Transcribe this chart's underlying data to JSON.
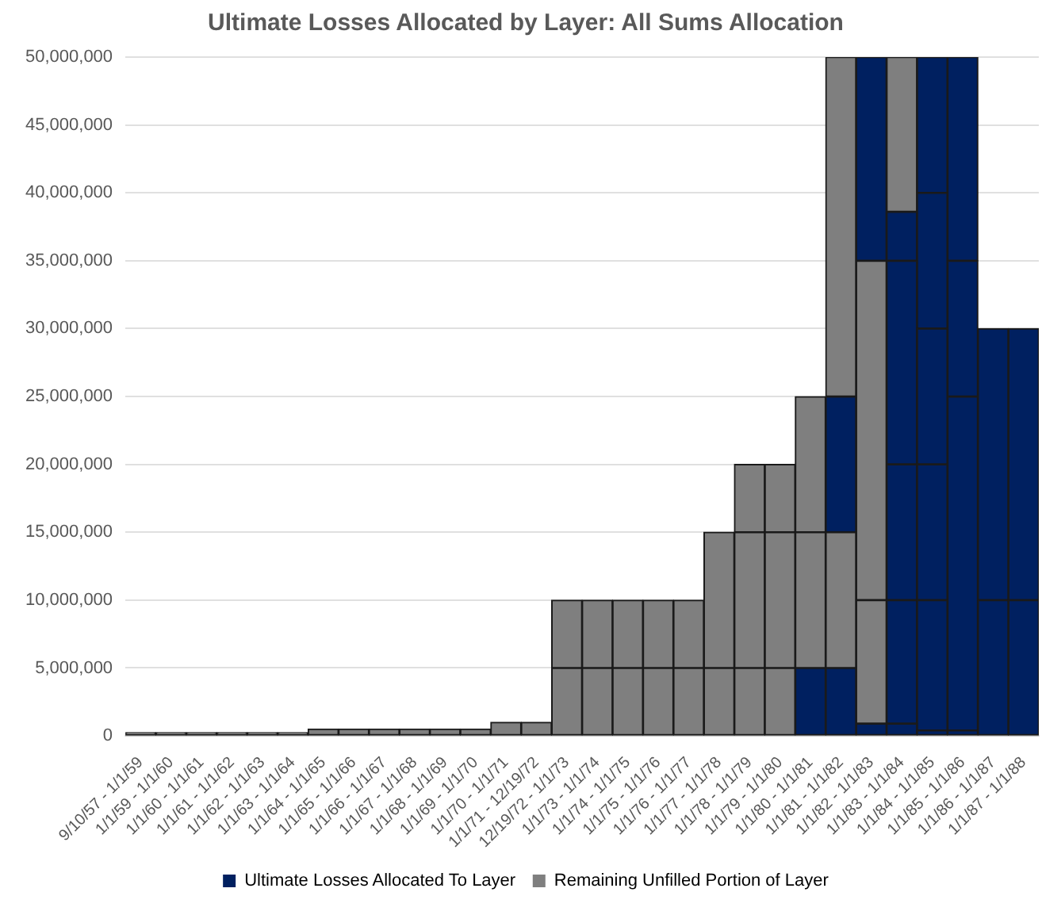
{
  "chart_data": {
    "type": "bar",
    "title": "Ultimate Losses Allocated by Layer: All Sums Allocation",
    "stacked": true,
    "grid": "y",
    "legend": "bottom",
    "categories": [
      "9/10/57 - 1/1/59",
      "1/1/59 - 1/1/60",
      "1/1/60 - 1/1/61",
      "1/1/61 - 1/1/62",
      "1/1/62 - 1/1/63",
      "1/1/63 - 1/1/64",
      "1/1/64 - 1/1/65",
      "1/1/65 - 1/1/66",
      "1/1/66 - 1/1/67",
      "1/1/67 - 1/1/68",
      "1/1/68 - 1/1/69",
      "1/1/69 - 1/1/70",
      "1/1/70 - 1/1/71",
      "1/1/71 - 12/19/72",
      "12/19/72 - 1/1/73",
      "1/1/73 - 1/1/74",
      "1/1/74 - 1/1/75",
      "1/1/75 - 1/1/76",
      "1/1/76 - 1/1/77",
      "1/1/77 - 1/1/78",
      "1/1/78 - 1/1/79",
      "1/1/79 - 1/1/80",
      "1/1/80 - 1/1/81",
      "1/1/81 - 1/1/82",
      "1/1/82 - 1/1/83",
      "1/1/83 - 1/1/84",
      "1/1/84 - 1/1/85",
      "1/1/85 - 1/1/86",
      "1/1/86 - 1/1/87",
      "1/1/87 - 1/1/88"
    ],
    "series": [
      {
        "name": "Ultimate Losses Allocated To Layer",
        "color": "#002060",
        "values": [
          null,
          null,
          null,
          null,
          null,
          null,
          null,
          null,
          null,
          null,
          null,
          null,
          null,
          null,
          null,
          null,
          null,
          null,
          null,
          null,
          null,
          null,
          5000000,
          5000000,
          900000,
          900000,
          400000,
          400000,
          10000000,
          10000000
        ]
      },
      {
        "color": "#002060",
        "values": [
          null,
          null,
          null,
          null,
          null,
          null,
          null,
          null,
          null,
          null,
          null,
          null,
          null,
          null,
          null,
          null,
          null,
          null,
          null,
          null,
          null,
          null,
          null,
          null,
          null,
          9100000,
          9600000,
          24600000,
          20000000,
          20000000
        ]
      },
      {
        "color": "#002060",
        "values": [
          null,
          null,
          null,
          null,
          null,
          null,
          null,
          null,
          null,
          null,
          null,
          null,
          null,
          null,
          null,
          null,
          null,
          null,
          null,
          null,
          null,
          null,
          null,
          null,
          null,
          10000000,
          10000000,
          10000000,
          null,
          null
        ]
      },
      {
        "color": "#002060",
        "values": [
          null,
          null,
          null,
          null,
          null,
          null,
          null,
          null,
          null,
          null,
          null,
          null,
          null,
          null,
          null,
          null,
          null,
          null,
          null,
          null,
          null,
          null,
          null,
          null,
          null,
          15000000,
          10000000,
          15000000,
          null,
          null
        ]
      },
      {
        "color": "#002060",
        "values": [
          null,
          null,
          null,
          null,
          null,
          null,
          null,
          null,
          null,
          null,
          null,
          null,
          null,
          null,
          null,
          null,
          null,
          null,
          null,
          null,
          null,
          null,
          null,
          null,
          null,
          3600000,
          10000000,
          null,
          null,
          null
        ]
      },
      {
        "color": "#002060",
        "values": [
          null,
          null,
          null,
          null,
          null,
          null,
          null,
          null,
          null,
          null,
          null,
          null,
          null,
          null,
          null,
          null,
          null,
          null,
          null,
          null,
          null,
          null,
          null,
          null,
          null,
          null,
          10000000,
          null,
          null,
          null
        ]
      },
      {
        "name": "Remaining Unfilled Portion of Layer",
        "color": "#7f7f7f",
        "values": [
          250000,
          250000,
          250000,
          250000,
          250000,
          250000,
          500000,
          500000,
          500000,
          500000,
          500000,
          500000,
          1000000,
          1000000,
          5000000,
          5000000,
          5000000,
          5000000,
          5000000,
          5000000,
          5000000,
          5000000,
          10000000,
          10000000,
          9100000,
          11400000,
          null,
          null,
          null,
          null
        ]
      },
      {
        "color": "#7f7f7f",
        "values": [
          null,
          null,
          null,
          null,
          null,
          null,
          null,
          null,
          null,
          null,
          null,
          null,
          null,
          null,
          5000000,
          5000000,
          5000000,
          5000000,
          5000000,
          10000000,
          10000000,
          10000000,
          10000000,
          null,
          25000000,
          null,
          null,
          null,
          null,
          null
        ]
      },
      {
        "color": "#002060",
        "values": [
          null,
          null,
          null,
          null,
          null,
          null,
          null,
          null,
          null,
          null,
          null,
          null,
          null,
          null,
          null,
          null,
          null,
          null,
          null,
          null,
          null,
          null,
          null,
          10000000,
          15000000,
          null,
          null,
          null,
          null,
          null
        ]
      },
      {
        "color": "#7f7f7f",
        "values": [
          null,
          null,
          null,
          null,
          null,
          null,
          null,
          null,
          null,
          null,
          null,
          null,
          null,
          null,
          null,
          null,
          null,
          null,
          null,
          null,
          5000000,
          5000000,
          null,
          25000000,
          null,
          null,
          null,
          null,
          null,
          null
        ]
      }
    ],
    "ylim": [
      0,
      50000000
    ],
    "yticks": [
      {
        "value": 0,
        "label": "0"
      },
      {
        "value": 5000000,
        "label": "5,000,000"
      },
      {
        "value": 10000000,
        "label": "10,000,000"
      },
      {
        "value": 15000000,
        "label": "15,000,000"
      },
      {
        "value": 20000000,
        "label": "20,000,000"
      },
      {
        "value": 25000000,
        "label": "25,000,000"
      },
      {
        "value": 30000000,
        "label": "30,000,000"
      },
      {
        "value": 35000000,
        "label": "35,000,000"
      },
      {
        "value": 40000000,
        "label": "40,000,000"
      },
      {
        "value": 45000000,
        "label": "45,000,000"
      },
      {
        "value": 50000000,
        "label": "50,000,000"
      }
    ]
  }
}
